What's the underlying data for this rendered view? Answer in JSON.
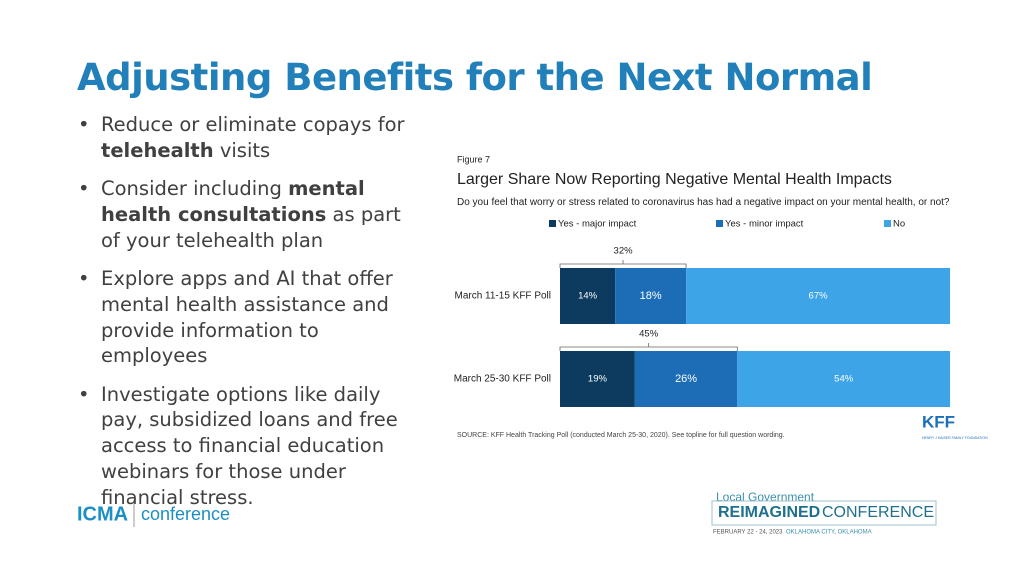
{
  "title": "Adjusting Benefits for the Next Normal",
  "bullets": [
    [
      {
        "text": "Reduce or eliminate copays for "
      },
      {
        "text": "telehealth",
        "bold": true
      },
      {
        "text": " visits"
      }
    ],
    [
      {
        "text": "Consider including "
      },
      {
        "text": "mental health consultations",
        "bold": true
      },
      {
        "text": " as part of your telehealth plan"
      }
    ],
    [
      {
        "text": "Explore apps and AI that offer mental health assistance and provide information to employees"
      }
    ],
    [
      {
        "text": "Investigate options like daily pay, subsidized loans and free access to financial education webinars for those under financial stress."
      }
    ]
  ],
  "chart_data": {
    "type": "stacked-barh",
    "figure_label": "Figure 7",
    "title": "Larger Share Now Reporting Negative Mental Health Impacts",
    "subtitle": "Do you feel that worry or stress related to coronavirus has had a negative impact on your mental health, or not?",
    "categories": [
      "March 11-15 KFF Poll",
      "March 25-30 KFF Poll"
    ],
    "series": [
      {
        "name": "Yes - major impact",
        "color": "#0c3b5f",
        "values": [
          14,
          19
        ],
        "value_labels": [
          "14%",
          "19%"
        ]
      },
      {
        "name": "Yes - minor impact",
        "color": "#1c6db5",
        "values": [
          18,
          26
        ],
        "value_labels": [
          "18%",
          "26%"
        ]
      },
      {
        "name": "No",
        "color": "#3ea4e8",
        "values": [
          67,
          54
        ],
        "value_labels": [
          "67%",
          "54%"
        ]
      }
    ],
    "totals": {
      "values": [
        32,
        45
      ],
      "value_labels": [
        "32%",
        "45%"
      ]
    },
    "xlim": [
      0,
      100
    ],
    "source": "SOURCE: KFF Health Tracking Poll (conducted March 25-30, 2020). See topline for full question wording."
  },
  "logos": {
    "kff": "KFF",
    "kff_sub": "HENRY J KAISER FAMILY FOUNDATION",
    "icma": "ICMA",
    "icma_sub": "conference",
    "conf_top": "Local Government",
    "conf_main": "REIMAGINED",
    "conf_side": "CONFERENCE",
    "conf_date": "FEBRUARY 22 - 24, 2023",
    "conf_place": "OKLAHOMA CITY, OKLAHOMA"
  }
}
